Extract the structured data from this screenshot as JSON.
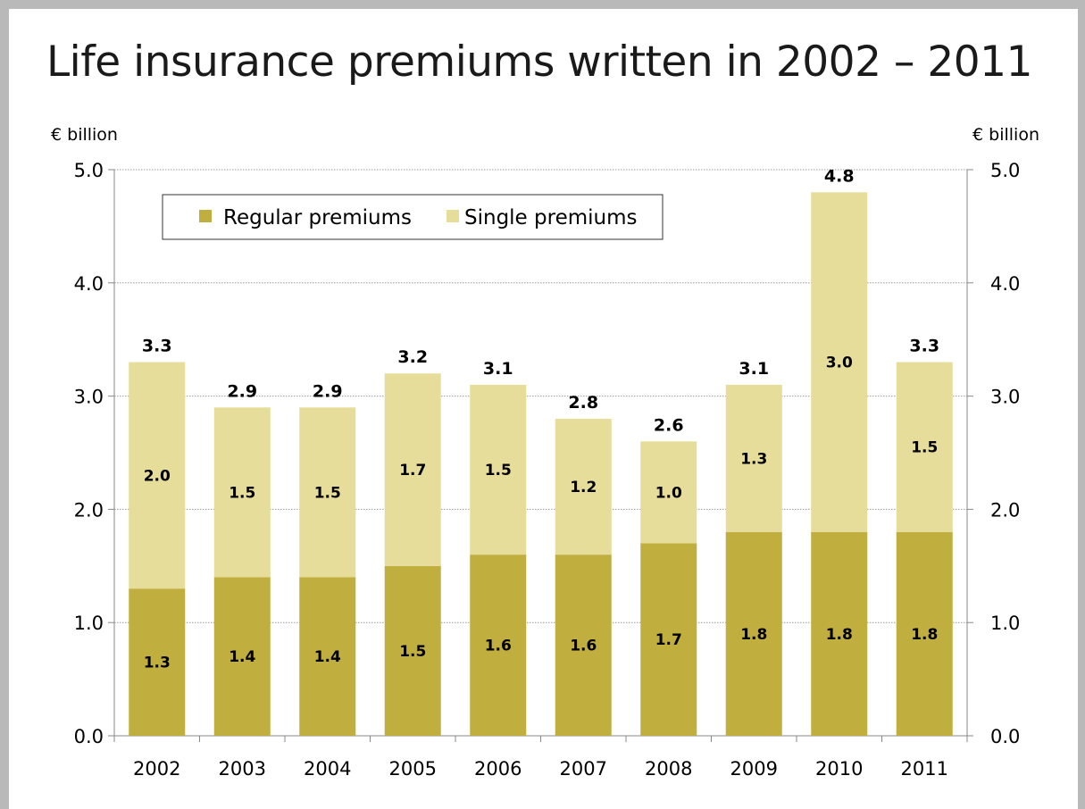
{
  "title": "Life insurance premiums written in 2002 – 2011",
  "colors": {
    "regular": "#c0ae3e",
    "single": "#e6dd9a",
    "frame": "#b9b9b9",
    "grid": "#9a9a9a"
  },
  "chart_data": {
    "type": "bar",
    "stacked": true,
    "categories": [
      "2002",
      "2003",
      "2004",
      "2005",
      "2006",
      "2007",
      "2008",
      "2009",
      "2010",
      "2011"
    ],
    "series": [
      {
        "name": "Regular premiums",
        "values": [
          1.3,
          1.4,
          1.4,
          1.5,
          1.6,
          1.6,
          1.7,
          1.8,
          1.8,
          1.8
        ],
        "labels": [
          "1.3",
          "1.4",
          "1.4",
          "1.5",
          "1.6",
          "1.6",
          "1.7",
          "1.8",
          "1.8",
          "1.8"
        ]
      },
      {
        "name": "Single premiums",
        "values": [
          2.0,
          1.5,
          1.5,
          1.7,
          1.5,
          1.2,
          1.0,
          1.3,
          3.0,
          1.5
        ],
        "labels": [
          "2.0",
          "1.5",
          "1.5",
          "1.7",
          "1.5",
          "1.2",
          "1.0",
          "1.3",
          "3.0",
          "1.5"
        ]
      }
    ],
    "totals": [
      3.3,
      2.9,
      2.9,
      3.2,
      3.1,
      2.8,
      2.6,
      3.1,
      4.8,
      3.3
    ],
    "total_labels": [
      "3.3",
      "2.9",
      "2.9",
      "3.2",
      "3.1",
      "2.8",
      "2.6",
      "3.1",
      "4.8",
      "3.3"
    ],
    "ylabel_left": "€ billion",
    "ylabel_right": "€ billion",
    "ylim": [
      0,
      5
    ],
    "yticks": [
      "0.0",
      "1.0",
      "2.0",
      "3.0",
      "4.0",
      "5.0"
    ],
    "grid": true,
    "legend_position": "top-left"
  }
}
